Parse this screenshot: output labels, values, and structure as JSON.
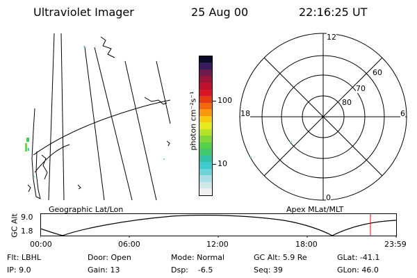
{
  "header": {
    "title": "Ultraviolet Imager",
    "date": "25 Aug 00",
    "time": "22:16:25 UT"
  },
  "colorbar": {
    "unit_label": "photon cm⁻²s⁻¹",
    "ticks": [
      "100",
      "10"
    ],
    "colors": [
      "#f0f0f0",
      "#cfe8ea",
      "#a9dfe4",
      "#6fd4d8",
      "#3fcccc",
      "#31c2a8",
      "#3fc870",
      "#55d04a",
      "#7fd83a",
      "#b5e22a",
      "#e6ea1e",
      "#f6c80e",
      "#f8980a",
      "#f36a0a",
      "#e53a12",
      "#d81628",
      "#c0102e",
      "#9c1436",
      "#6e1a4c",
      "#3a1c5c",
      "#0a0a2a"
    ]
  },
  "polar": {
    "mlt_labels": [
      "12",
      "18",
      "6",
      "0"
    ],
    "lat_labels": [
      "60",
      "70",
      "80"
    ]
  },
  "timeline": {
    "left_title": "Geographic Lat/Lon",
    "right_title": "Apex MLat/MLT",
    "axis_label": "GC Alt",
    "y_ticks": [
      "9.0",
      "1.8"
    ],
    "x_ticks": [
      "00:00",
      "06:00",
      "12:00",
      "18:00",
      "23:59"
    ]
  },
  "status": {
    "flt": "Flt: LBHL",
    "door": "Door: Open",
    "mode": "Mode: Normal",
    "gc_alt": "GC Alt: 5.9 Re",
    "glat": "GLat: -41.1",
    "ip": "IP: 9.0",
    "gain": "Gain: 13",
    "dsp": "Dsp:    -6.5",
    "seq": "Seq: 39",
    "glon": "GLon: 46.0"
  }
}
